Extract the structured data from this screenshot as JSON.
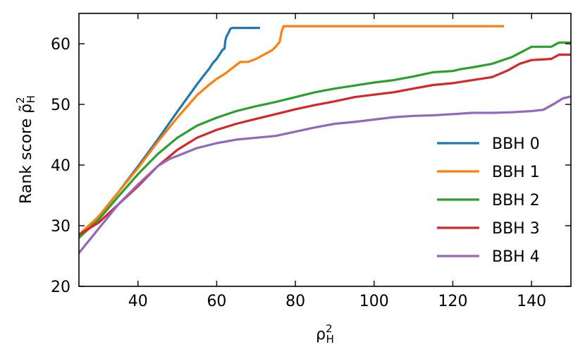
{
  "chart_data": {
    "type": "line",
    "title": "",
    "xlabel": {
      "base": "ρ",
      "sup": "2",
      "sub": "H"
    },
    "ylabel": {
      "text": "Rank score ",
      "base": "ρ̃",
      "sup": "2",
      "sub": "H"
    },
    "xlim": [
      25,
      150
    ],
    "ylim": [
      20,
      65
    ],
    "xticks": [
      40,
      60,
      80,
      100,
      120,
      140
    ],
    "yticks": [
      20,
      30,
      40,
      50,
      60
    ],
    "grid": false,
    "legend_position": "lower-right",
    "series": [
      {
        "name": "BBH 0",
        "color": "#1f77b4",
        "x": [
          25,
          30,
          35,
          40,
          45,
          50,
          53,
          55,
          57,
          58,
          59,
          60,
          60.5,
          61,
          61.5,
          62,
          62.2,
          62.5,
          63,
          63.5,
          64,
          65,
          67,
          69,
          71
        ],
        "y": [
          28.5,
          31.5,
          35.5,
          39.8,
          44.2,
          48.8,
          51.5,
          53.3,
          55,
          55.8,
          56.8,
          57.5,
          58,
          58.5,
          59,
          59.2,
          60.5,
          61.2,
          61.8,
          62.5,
          62.6,
          62.6,
          62.6,
          62.6,
          62.6
        ]
      },
      {
        "name": "BBH 1",
        "color": "#ff7f0e",
        "x": [
          25,
          30,
          35,
          40,
          45,
          50,
          55,
          58,
          60,
          62,
          64,
          66,
          68,
          70,
          72,
          74,
          75,
          76,
          76.5,
          77,
          80,
          90,
          100,
          110,
          120,
          130,
          133
        ],
        "y": [
          28.5,
          31.5,
          35.5,
          39.5,
          43.8,
          47.8,
          51.5,
          53.2,
          54.2,
          55,
          56,
          57,
          57,
          57.5,
          58.2,
          58.9,
          59.5,
          60.3,
          62,
          62.9,
          62.9,
          62.9,
          62.9,
          62.9,
          62.9,
          62.9,
          62.9
        ]
      },
      {
        "name": "BBH 2",
        "color": "#2ca02c",
        "x": [
          25,
          30,
          35,
          40,
          45,
          50,
          55,
          60,
          65,
          70,
          75,
          80,
          85,
          90,
          95,
          100,
          105,
          110,
          115,
          120,
          122,
          125,
          130,
          135,
          140,
          145,
          147,
          150
        ],
        "y": [
          28,
          31,
          34.8,
          38.5,
          41.8,
          44.5,
          46.5,
          47.8,
          48.9,
          49.7,
          50.4,
          51.2,
          52,
          52.6,
          53.1,
          53.6,
          54,
          54.6,
          55.3,
          55.5,
          55.8,
          56.1,
          56.7,
          57.8,
          59.5,
          59.5,
          60.2,
          60.2
        ]
      },
      {
        "name": "BBH 3",
        "color": "#d62728",
        "x": [
          25,
          30,
          35,
          40,
          45,
          50,
          55,
          60,
          65,
          70,
          75,
          80,
          85,
          90,
          95,
          100,
          105,
          110,
          115,
          120,
          123,
          125,
          130,
          134,
          137,
          140,
          145,
          147,
          150
        ],
        "y": [
          28.5,
          30.5,
          33.5,
          36.5,
          39.8,
          42.5,
          44.5,
          45.8,
          46.8,
          47.6,
          48.4,
          49.2,
          49.9,
          50.5,
          51.2,
          51.6,
          52,
          52.6,
          53.2,
          53.5,
          53.8,
          54,
          54.5,
          55.6,
          56.7,
          57.3,
          57.5,
          58.2,
          58.2
        ]
      },
      {
        "name": "BBH 4",
        "color": "#9467bd",
        "x": [
          25,
          30,
          35,
          40,
          45,
          48,
          50,
          55,
          60,
          65,
          70,
          75,
          80,
          85,
          90,
          95,
          100,
          105,
          110,
          115,
          120,
          125,
          130,
          135,
          140,
          143,
          146,
          148,
          150
        ],
        "y": [
          25.5,
          29.5,
          33.5,
          36.8,
          39.8,
          41,
          41.5,
          42.8,
          43.6,
          44.2,
          44.5,
          44.8,
          45.5,
          46.2,
          46.8,
          47.1,
          47.5,
          47.9,
          48.1,
          48.2,
          48.4,
          48.6,
          48.6,
          48.7,
          48.9,
          49.1,
          50.2,
          51,
          51.3
        ]
      }
    ]
  }
}
